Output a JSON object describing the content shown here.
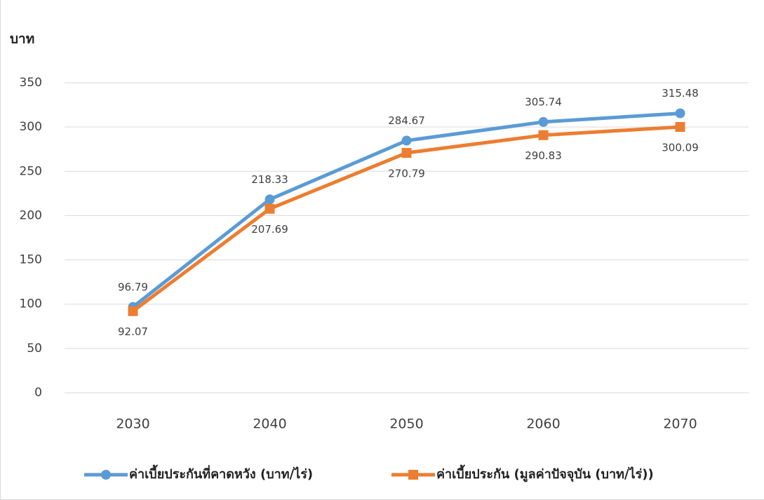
{
  "chart_data": {
    "type": "line",
    "y_label": "บาท",
    "categories": [
      "2030",
      "2040",
      "2050",
      "2060",
      "2070"
    ],
    "series": [
      {
        "name": "ค่าเบี้ยประกันที่คาดหวัง (บาท/ไร่)",
        "color": "#5b9bd5",
        "marker": "circle",
        "values": [
          96.79,
          218.33,
          284.67,
          305.74,
          315.48
        ]
      },
      {
        "name": "ค่าเบี้ยประกัน (มูลค่าปัจจุบัน (บาท/ไร่))",
        "color": "#ed7d31",
        "marker": "square",
        "values": [
          92.07,
          207.69,
          270.79,
          290.83,
          300.09
        ]
      }
    ],
    "ylim": [
      0,
      350
    ],
    "yticks": [
      0,
      50,
      100,
      150,
      200,
      250,
      300,
      350
    ],
    "grid": true,
    "legend": "bottom"
  }
}
